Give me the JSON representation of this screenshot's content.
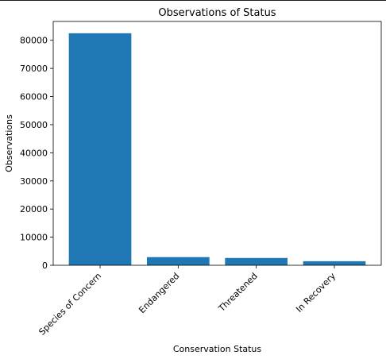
{
  "chart_data": {
    "type": "bar",
    "title": "Observations of Status",
    "xlabel": "Conservation Status",
    "ylabel": "Observations",
    "categories": [
      "Species of Concern",
      "Endangered",
      "Threatened",
      "In Recovery"
    ],
    "values": [
      82500,
      2900,
      2600,
      1450
    ],
    "ylim": [
      0,
      86700
    ],
    "yticks": [
      0,
      10000,
      20000,
      30000,
      40000,
      50000,
      60000,
      70000,
      80000
    ],
    "ytick_labels": [
      "0",
      "10000",
      "20000",
      "30000",
      "40000",
      "50000",
      "60000",
      "70000",
      "80000"
    ],
    "bar_color": "#1f77b4",
    "grid": false,
    "legend": "none"
  }
}
